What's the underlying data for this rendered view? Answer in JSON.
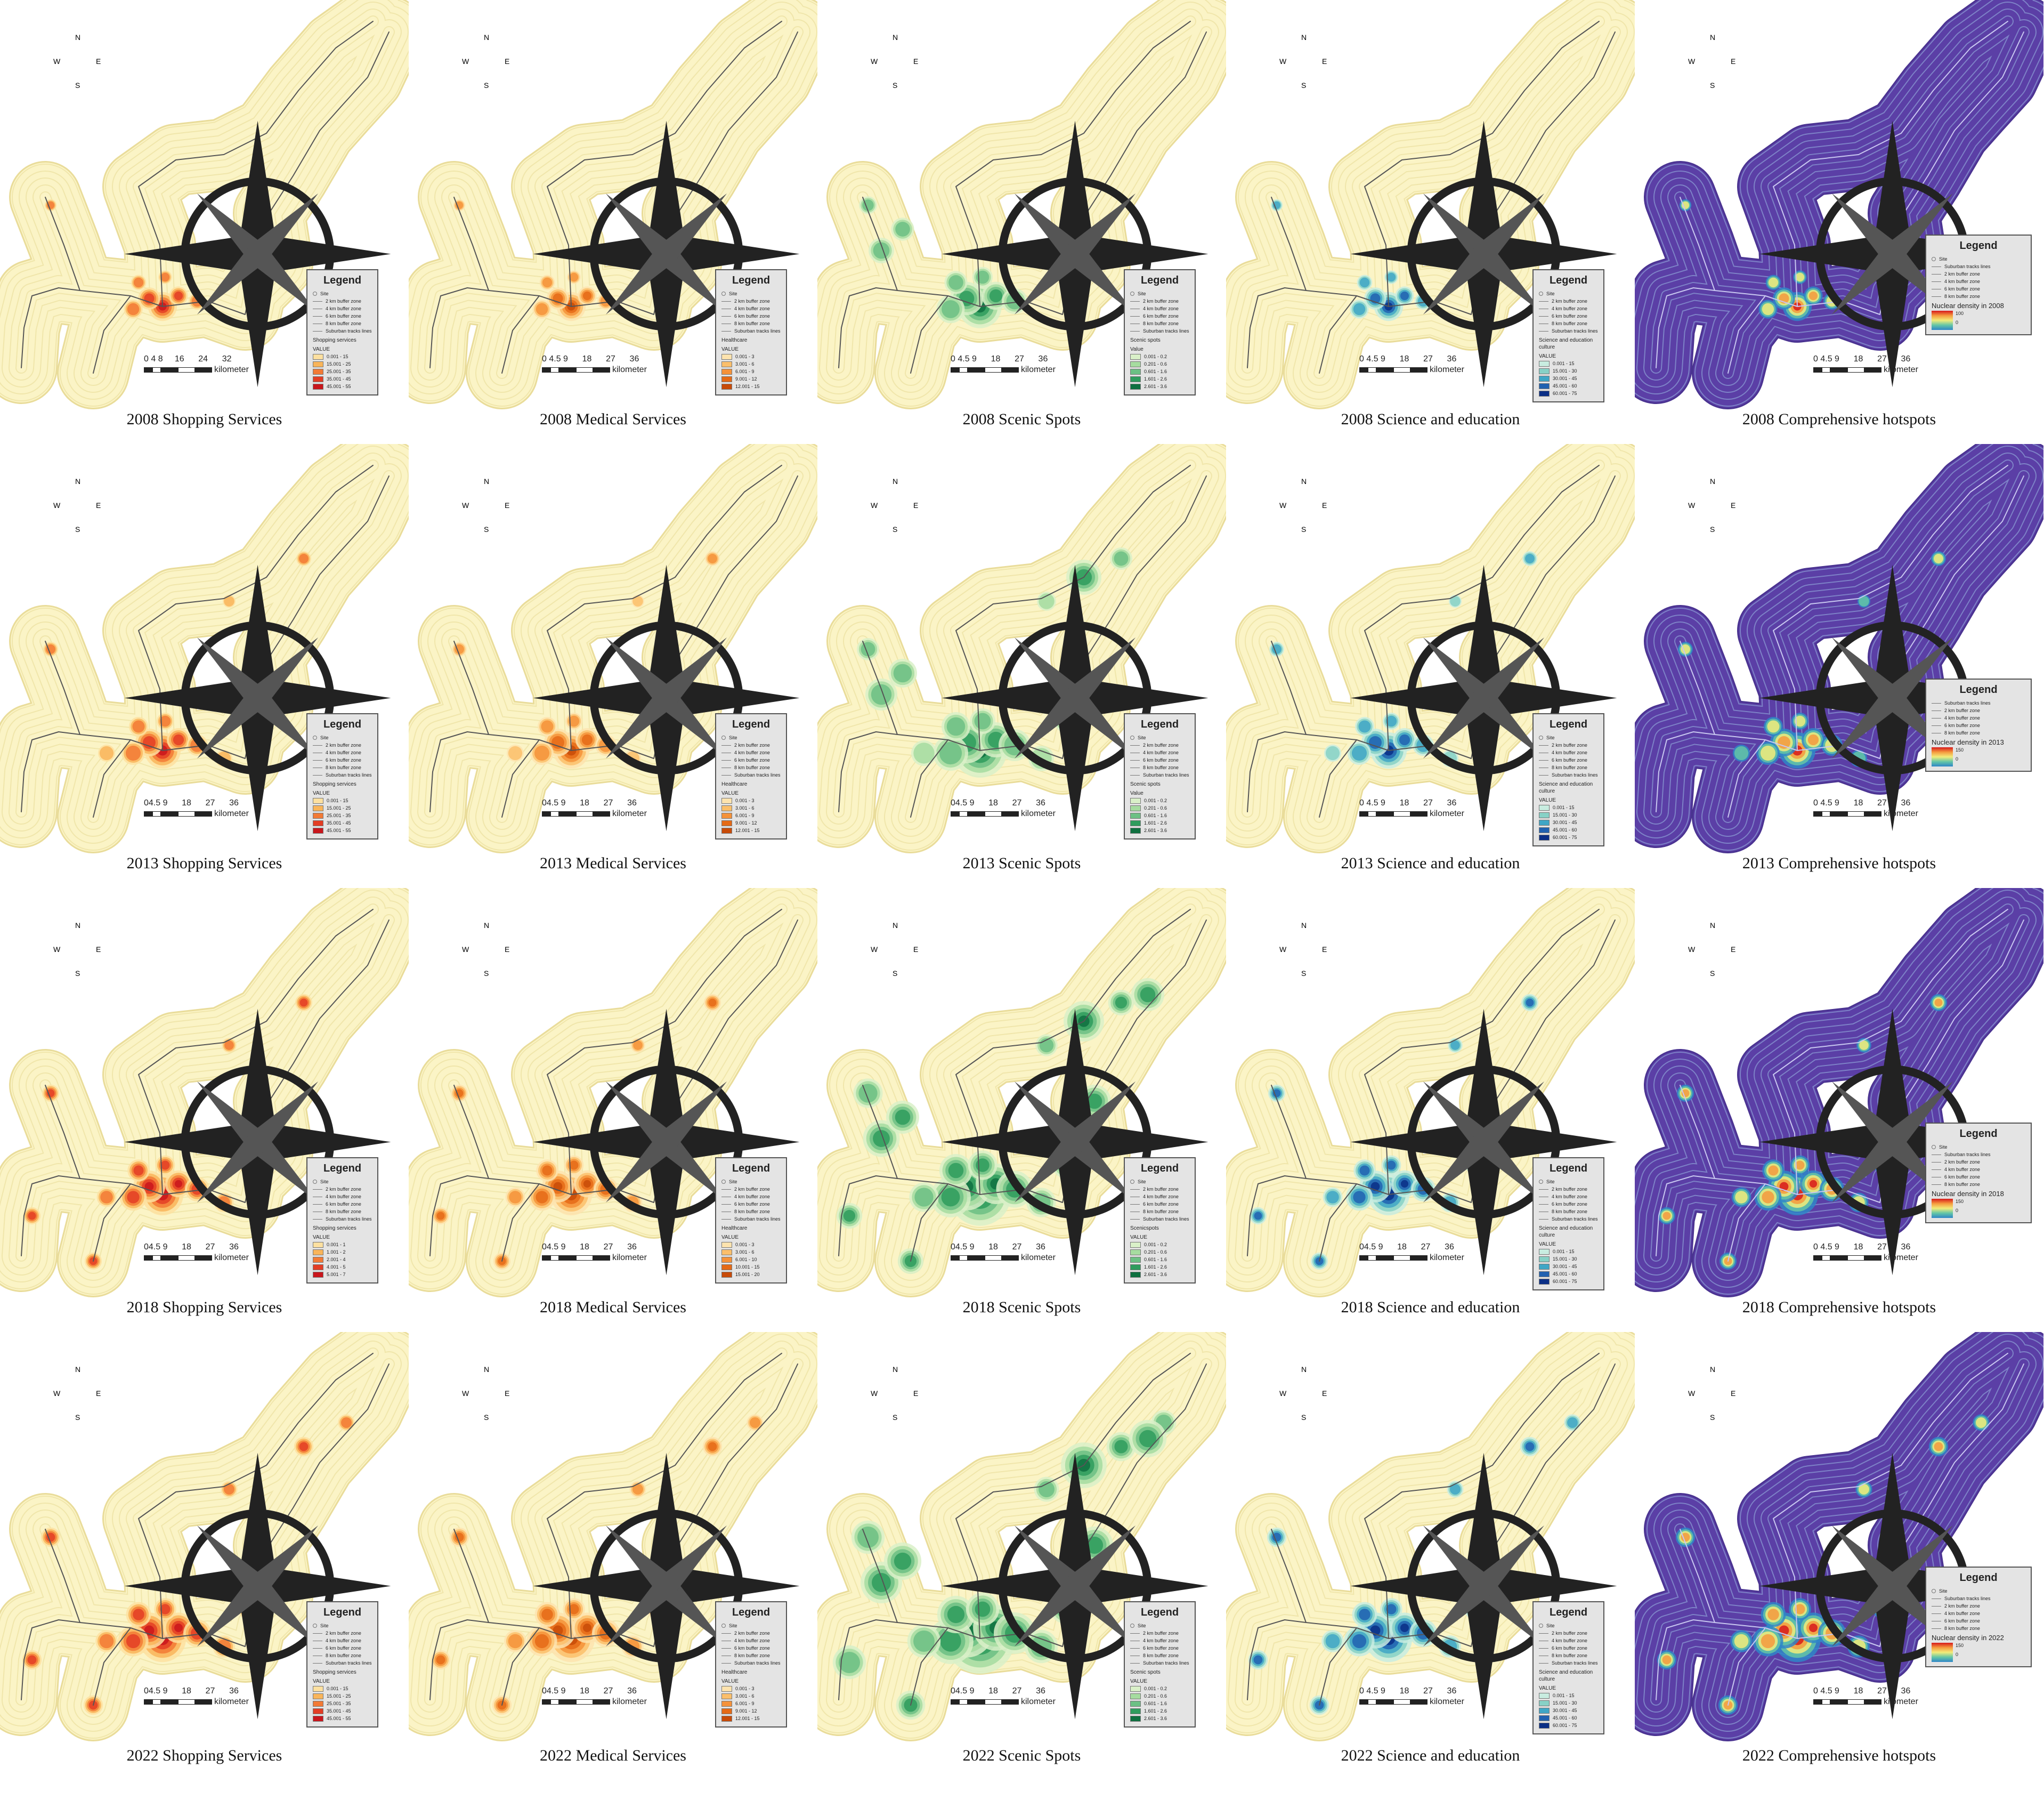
{
  "compass": {
    "n": "N",
    "s": "S",
    "e": "E",
    "w": "W"
  },
  "scale_unit": "kilometer",
  "panels": [
    {
      "caption": "2008 Shopping Services",
      "theme": "shopping",
      "year": "2008",
      "scale_ticks": "0 4 8     16      24      32",
      "legend": {
        "title": "Legend",
        "rows": [
          "Site",
          "2 km buffer zone",
          "4 km buffer zone",
          "6 km buffer zone",
          "8 km buffer zone",
          "Suburban tracks lines"
        ],
        "field": "Shopping services",
        "value_label": "VALUE",
        "classes": [
          "0.001 - 15",
          "15.001 - 25",
          "25.001 - 35",
          "35.001 - 45",
          "45.001 - 55"
        ]
      }
    },
    {
      "caption": "2008 Medical Services",
      "theme": "medical",
      "year": "2008",
      "scale_ticks": "0 4.5 9      18      27      36",
      "legend": {
        "title": "Legend",
        "rows": [
          "Site",
          "2 km buffer zone",
          "4 km buffer zone",
          "6 km buffer zone",
          "8 km buffer zone",
          "Suburban tracks lines"
        ],
        "field": "Healthcare",
        "value_label": "VALUE",
        "classes": [
          "0.001 - 3",
          "3.001 - 6",
          "6.001 - 9",
          "9.001 - 12",
          "12.001 - 15"
        ]
      }
    },
    {
      "caption": "2008 Scenic Spots",
      "theme": "scenic",
      "year": "2008",
      "scale_ticks": "0 4.5 9      18      27      36",
      "legend": {
        "title": "Legend",
        "rows": [
          "Site",
          "2 km buffer zone",
          "4 km buffer zone",
          "6 km buffer zone",
          "8 km buffer zone",
          "Suburban tracks lines"
        ],
        "field": "Scenic spots",
        "value_label": "Value",
        "classes": [
          "0.001 - 0.2",
          "0.201 - 0.6",
          "0.601 - 1.6",
          "1.601 - 2.6",
          "2.601 - 3.6"
        ]
      }
    },
    {
      "caption": "2008 Science and education",
      "theme": "science",
      "year": "2008",
      "scale_ticks": "0 4.5 9      18      27      36",
      "legend": {
        "title": "Legend",
        "rows": [
          "Site",
          "2 km buffer zone",
          "4 km buffer zone",
          "6 km buffer zone",
          "8 km buffer zone",
          "Suburban tracks lines"
        ],
        "field": "Science and education culture",
        "value_label": "VALUE",
        "classes": [
          "0.001 - 15",
          "15.001 - 30",
          "30.001 - 45",
          "45.001 - 60",
          "60.001 - 75"
        ]
      }
    },
    {
      "caption": "2008 Comprehensive hotspots",
      "theme": "comp",
      "year": "2008",
      "scale_ticks": "0 4.5 9      18      27      36",
      "legend": {
        "title": "Legend",
        "rows": [
          "Site",
          "Suburban tracks lines",
          "2 km buffer zone",
          "4 km buffer zone",
          "6 km buffer zone",
          "8 km buffer zone"
        ],
        "field": "Nuclear density in 2008",
        "value_label": "",
        "ramp_max": "100",
        "ramp_min": "0"
      }
    },
    {
      "caption": "2013 Shopping Services",
      "theme": "shopping",
      "year": "2013",
      "scale_ticks": "04.5 9      18      27      36",
      "legend": {
        "title": "Legend",
        "rows": [
          "Site",
          "2 km buffer zone",
          "4 km buffer zone",
          "6 km buffer zone",
          "8 km buffer zone",
          "Suburban tracks lines"
        ],
        "field": "Shopping services",
        "value_label": "VALUE",
        "classes": [
          "0.001 - 15",
          "15.001 - 25",
          "25.001 - 35",
          "35.001 - 45",
          "45.001 - 55"
        ]
      }
    },
    {
      "caption": "2013 Medical Services",
      "theme": "medical",
      "year": "2013",
      "scale_ticks": "04.5 9      18      27      36",
      "legend": {
        "title": "Legend",
        "rows": [
          "Site",
          "2 km buffer zone",
          "4 km buffer zone",
          "6 km buffer zone",
          "8 km buffer zone",
          "Suburban tracks lines"
        ],
        "field": "Healthcare",
        "value_label": "VALUE",
        "classes": [
          "0.001 - 3",
          "3.001 - 6",
          "6.001 - 9",
          "9.001 - 12",
          "12.001 - 15"
        ]
      }
    },
    {
      "caption": "2013 Scenic Spots",
      "theme": "scenic",
      "year": "2013",
      "scale_ticks": "04.5 9      18      27      36",
      "legend": {
        "title": "Legend",
        "rows": [
          "Site",
          "2 km buffer zone",
          "4 km buffer zone",
          "6 km buffer zone",
          "8 km buffer zone",
          "Suburban tracks lines"
        ],
        "field": "Scenic spots",
        "value_label": "Value",
        "classes": [
          "0.001 - 0.2",
          "0.201 - 0.6",
          "0.601 - 1.6",
          "1.601 - 2.6",
          "2.601 - 3.6"
        ]
      }
    },
    {
      "caption": "2013 Science and education",
      "theme": "science",
      "year": "2013",
      "scale_ticks": "0 4.5 9      18      27      36",
      "legend": {
        "title": "Legend",
        "rows": [
          "Site",
          "2 km buffer zone",
          "4 km buffer zone",
          "6 km buffer zone",
          "8 km buffer zone",
          "Suburban tracks lines"
        ],
        "field": "Science and education culture",
        "value_label": "VALUE",
        "classes": [
          "0.001 - 15",
          "15.001 - 30",
          "30.001 - 45",
          "45.001 - 60",
          "60.001 - 75"
        ]
      }
    },
    {
      "caption": "2013 Comprehensive hotspots",
      "theme": "comp",
      "year": "2013",
      "scale_ticks": "0 4.5 9      18      27      36",
      "legend": {
        "title": "Legend",
        "rows": [
          "Suburban tracks lines",
          "2 km buffer zone",
          "4 km buffer zone",
          "6 km buffer zone",
          "8 km buffer zone"
        ],
        "field": "Nuclear density in 2013",
        "value_label": "",
        "ramp_max": "150",
        "ramp_min": "0"
      }
    },
    {
      "caption": "2018 Shopping Services",
      "theme": "shopping",
      "year": "2018",
      "scale_ticks": "04.5 9      18      27      36",
      "legend": {
        "title": "Legend",
        "rows": [
          "Site",
          "2 km buffer zone",
          "4 km buffer zone",
          "6 km buffer zone",
          "8 km buffer zone",
          "Suburban tracks lines"
        ],
        "field": "Shopping services",
        "value_label": "VALUE",
        "classes": [
          "0.001 - 1",
          "1.001 - 2",
          "2.001 - 4",
          "4.001 - 5",
          "5.001 - 7"
        ]
      }
    },
    {
      "caption": "2018 Medical Services",
      "theme": "medical",
      "year": "2018",
      "scale_ticks": "04.5 9      18      27      36",
      "legend": {
        "title": "Legend",
        "rows": [
          "Site",
          "2 km buffer zone",
          "4 km buffer zone",
          "6 km buffer zone",
          "8 km buffer zone",
          "Suburban tracks lines"
        ],
        "field": "Healthcare",
        "value_label": "VALUE",
        "classes": [
          "0.001 - 3",
          "3.001 - 6",
          "6.001 - 10",
          "10.001 - 15",
          "15.001 - 20"
        ]
      }
    },
    {
      "caption": "2018 Scenic Spots",
      "theme": "scenic",
      "year": "2018",
      "scale_ticks": "04.5 9      18      27      36",
      "legend": {
        "title": "Legend",
        "rows": [
          "Site",
          "2 km buffer zone",
          "4 km buffer zone",
          "6 km buffer zone",
          "8 km buffer zone",
          "Suburban tracks lines"
        ],
        "field": "Scenicspots",
        "value_label": "VALUE",
        "classes": [
          "0.001 - 0.2",
          "0.201 - 0.6",
          "0.601 - 1.6",
          "1.601 - 2.6",
          "2.601 - 3.6"
        ]
      }
    },
    {
      "caption": "2018 Science and education",
      "theme": "science",
      "year": "2018",
      "scale_ticks": "04.5 9      18      27      36",
      "legend": {
        "title": "Legend",
        "rows": [
          "Site",
          "2 km buffer zone",
          "4 km buffer zone",
          "6 km buffer zone",
          "8 km buffer zone",
          "Suburban tracks lines"
        ],
        "field": "Science and education culture",
        "value_label": "VALUE",
        "classes": [
          "0.001 - 15",
          "15.001 - 30",
          "30.001 - 45",
          "45.001 - 60",
          "60.001 - 75"
        ]
      }
    },
    {
      "caption": "2018 Comprehensive hotspots",
      "theme": "comp",
      "year": "2018",
      "scale_ticks": "0 4.5 9      18      27      36",
      "legend": {
        "title": "Legend",
        "rows": [
          "Site",
          "Suburban tracks lines",
          "2 km buffer zone",
          "4 km buffer zone",
          "6 km buffer zone",
          "8 km buffer zone"
        ],
        "field": "Nuclear density in 2018",
        "value_label": "",
        "ramp_max": "150",
        "ramp_min": "0"
      }
    },
    {
      "caption": "2022 Shopping Services",
      "theme": "shopping",
      "year": "2022",
      "scale_ticks": "04.5 9      18      27      36",
      "legend": {
        "title": "Legend",
        "rows": [
          "Site",
          "2 km buffer zone",
          "4 km buffer zone",
          "6 km buffer zone",
          "8 km buffer zone",
          "Suburban tracks lines"
        ],
        "field": "Shopping services",
        "value_label": "VALUE",
        "classes": [
          "0.001 - 15",
          "15.001 - 25",
          "25.001 - 35",
          "35.001 - 45",
          "45.001 - 55"
        ]
      }
    },
    {
      "caption": "2022 Medical Services",
      "theme": "medical",
      "year": "2022",
      "scale_ticks": "04.5 9      18      27      36",
      "legend": {
        "title": "Legend",
        "rows": [
          "Site",
          "2 km buffer zone",
          "4 km buffer zone",
          "6 km buffer zone",
          "8 km buffer zone",
          "Suburban tracks lines"
        ],
        "field": "Healthcare",
        "value_label": "VALUE",
        "classes": [
          "0.001 - 3",
          "3.001 - 6",
          "6.001 - 9",
          "9.001 - 12",
          "12.001 - 15"
        ]
      }
    },
    {
      "caption": "2022 Scenic Spots",
      "theme": "scenic",
      "year": "2022",
      "scale_ticks": "04.5 9      18      27      36",
      "legend": {
        "title": "Legend",
        "rows": [
          "Site",
          "2 km buffer zone",
          "4 km buffer zone",
          "6 km buffer zone",
          "8 km buffer zone",
          "Suburban tracks lines"
        ],
        "field": "Scenic spots",
        "value_label": "VALUE",
        "classes": [
          "0.001 - 0.2",
          "0.201 - 0.6",
          "0.601 - 1.6",
          "1.601 - 2.6",
          "2.601 - 3.6"
        ]
      }
    },
    {
      "caption": "2022 Science and education",
      "theme": "science",
      "year": "2022",
      "scale_ticks": "0 4.5 9      18      27      36",
      "legend": {
        "title": "Legend",
        "rows": [
          "Site",
          "2 km buffer zone",
          "4 km buffer zone",
          "6 km buffer zone",
          "8 km buffer zone",
          "Suburban tracks lines"
        ],
        "field": "Science and education culture",
        "value_label": "VALUE",
        "classes": [
          "0.001 - 15",
          "15.001 - 30",
          "30.001 - 45",
          "45.001 - 60",
          "60.001 - 75"
        ]
      }
    },
    {
      "caption": "2022 Comprehensive hotspots",
      "theme": "comp",
      "year": "2022",
      "scale_ticks": "0 4.5 9      18      27      36",
      "legend": {
        "title": "Legend",
        "rows": [
          "Site",
          "Suburban tracks lines",
          "2 km buffer zone",
          "4 km buffer zone",
          "6 km buffer zone",
          "8 km buffer zone"
        ],
        "field": "Nuclear density in 2022",
        "value_label": "",
        "ramp_max": "150",
        "ramp_min": "0"
      }
    }
  ],
  "colors": {
    "buffer_fill": "#fbf4c6",
    "buffer_line": "#e9dc9a",
    "track": "#555555",
    "comp_fill": "#5b3fa6",
    "comp_line": "#9fc6e8",
    "shopping": [
      "#fde0a0",
      "#f9b55a",
      "#f27a35",
      "#e33d24",
      "#c9161c"
    ],
    "medical": [
      "#fde3ae",
      "#fbbf6b",
      "#f5923a",
      "#e56a16",
      "#c84b08"
    ],
    "scenic": [
      "#d9f0c8",
      "#a6dca0",
      "#6cc084",
      "#2f9c5d",
      "#0f7040"
    ],
    "science": [
      "#c8ece0",
      "#87d1c6",
      "#3fa6c6",
      "#2161b0",
      "#0b2f86"
    ],
    "hot": [
      "#2f86c8",
      "#64c6a6",
      "#f2ec7a",
      "#f59a3e",
      "#d7191c"
    ]
  }
}
